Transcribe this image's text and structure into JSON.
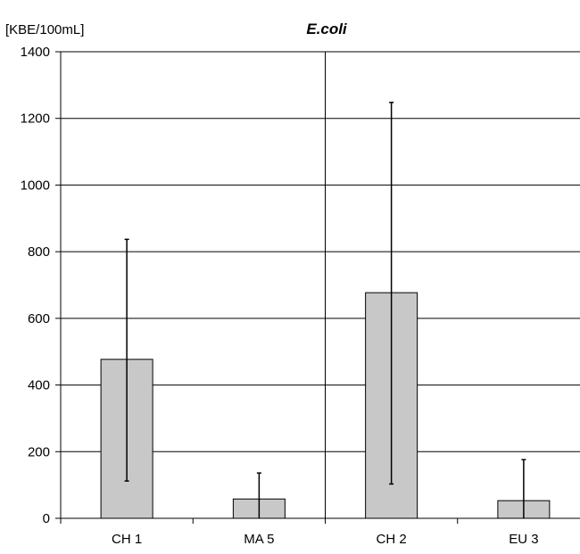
{
  "chart_data": {
    "type": "bar",
    "title": "E.coli",
    "ylabel": "[KBE/100mL]",
    "xlabel": "",
    "ylim": [
      0,
      1400
    ],
    "yticks": [
      0,
      200,
      400,
      600,
      800,
      1000,
      1200,
      1400
    ],
    "grid": true,
    "categories": [
      "CH 1",
      "MA 5",
      "CH 2",
      "EU 3"
    ],
    "values": [
      477,
      58,
      677,
      53
    ],
    "error_low": [
      112,
      0,
      103,
      0
    ],
    "error_high": [
      837,
      136,
      1248,
      176
    ],
    "group_divider_after_index": 1,
    "colors": {
      "bar": "#c8c8c8",
      "bar_stroke": "#000000",
      "grid": "#000000"
    }
  }
}
